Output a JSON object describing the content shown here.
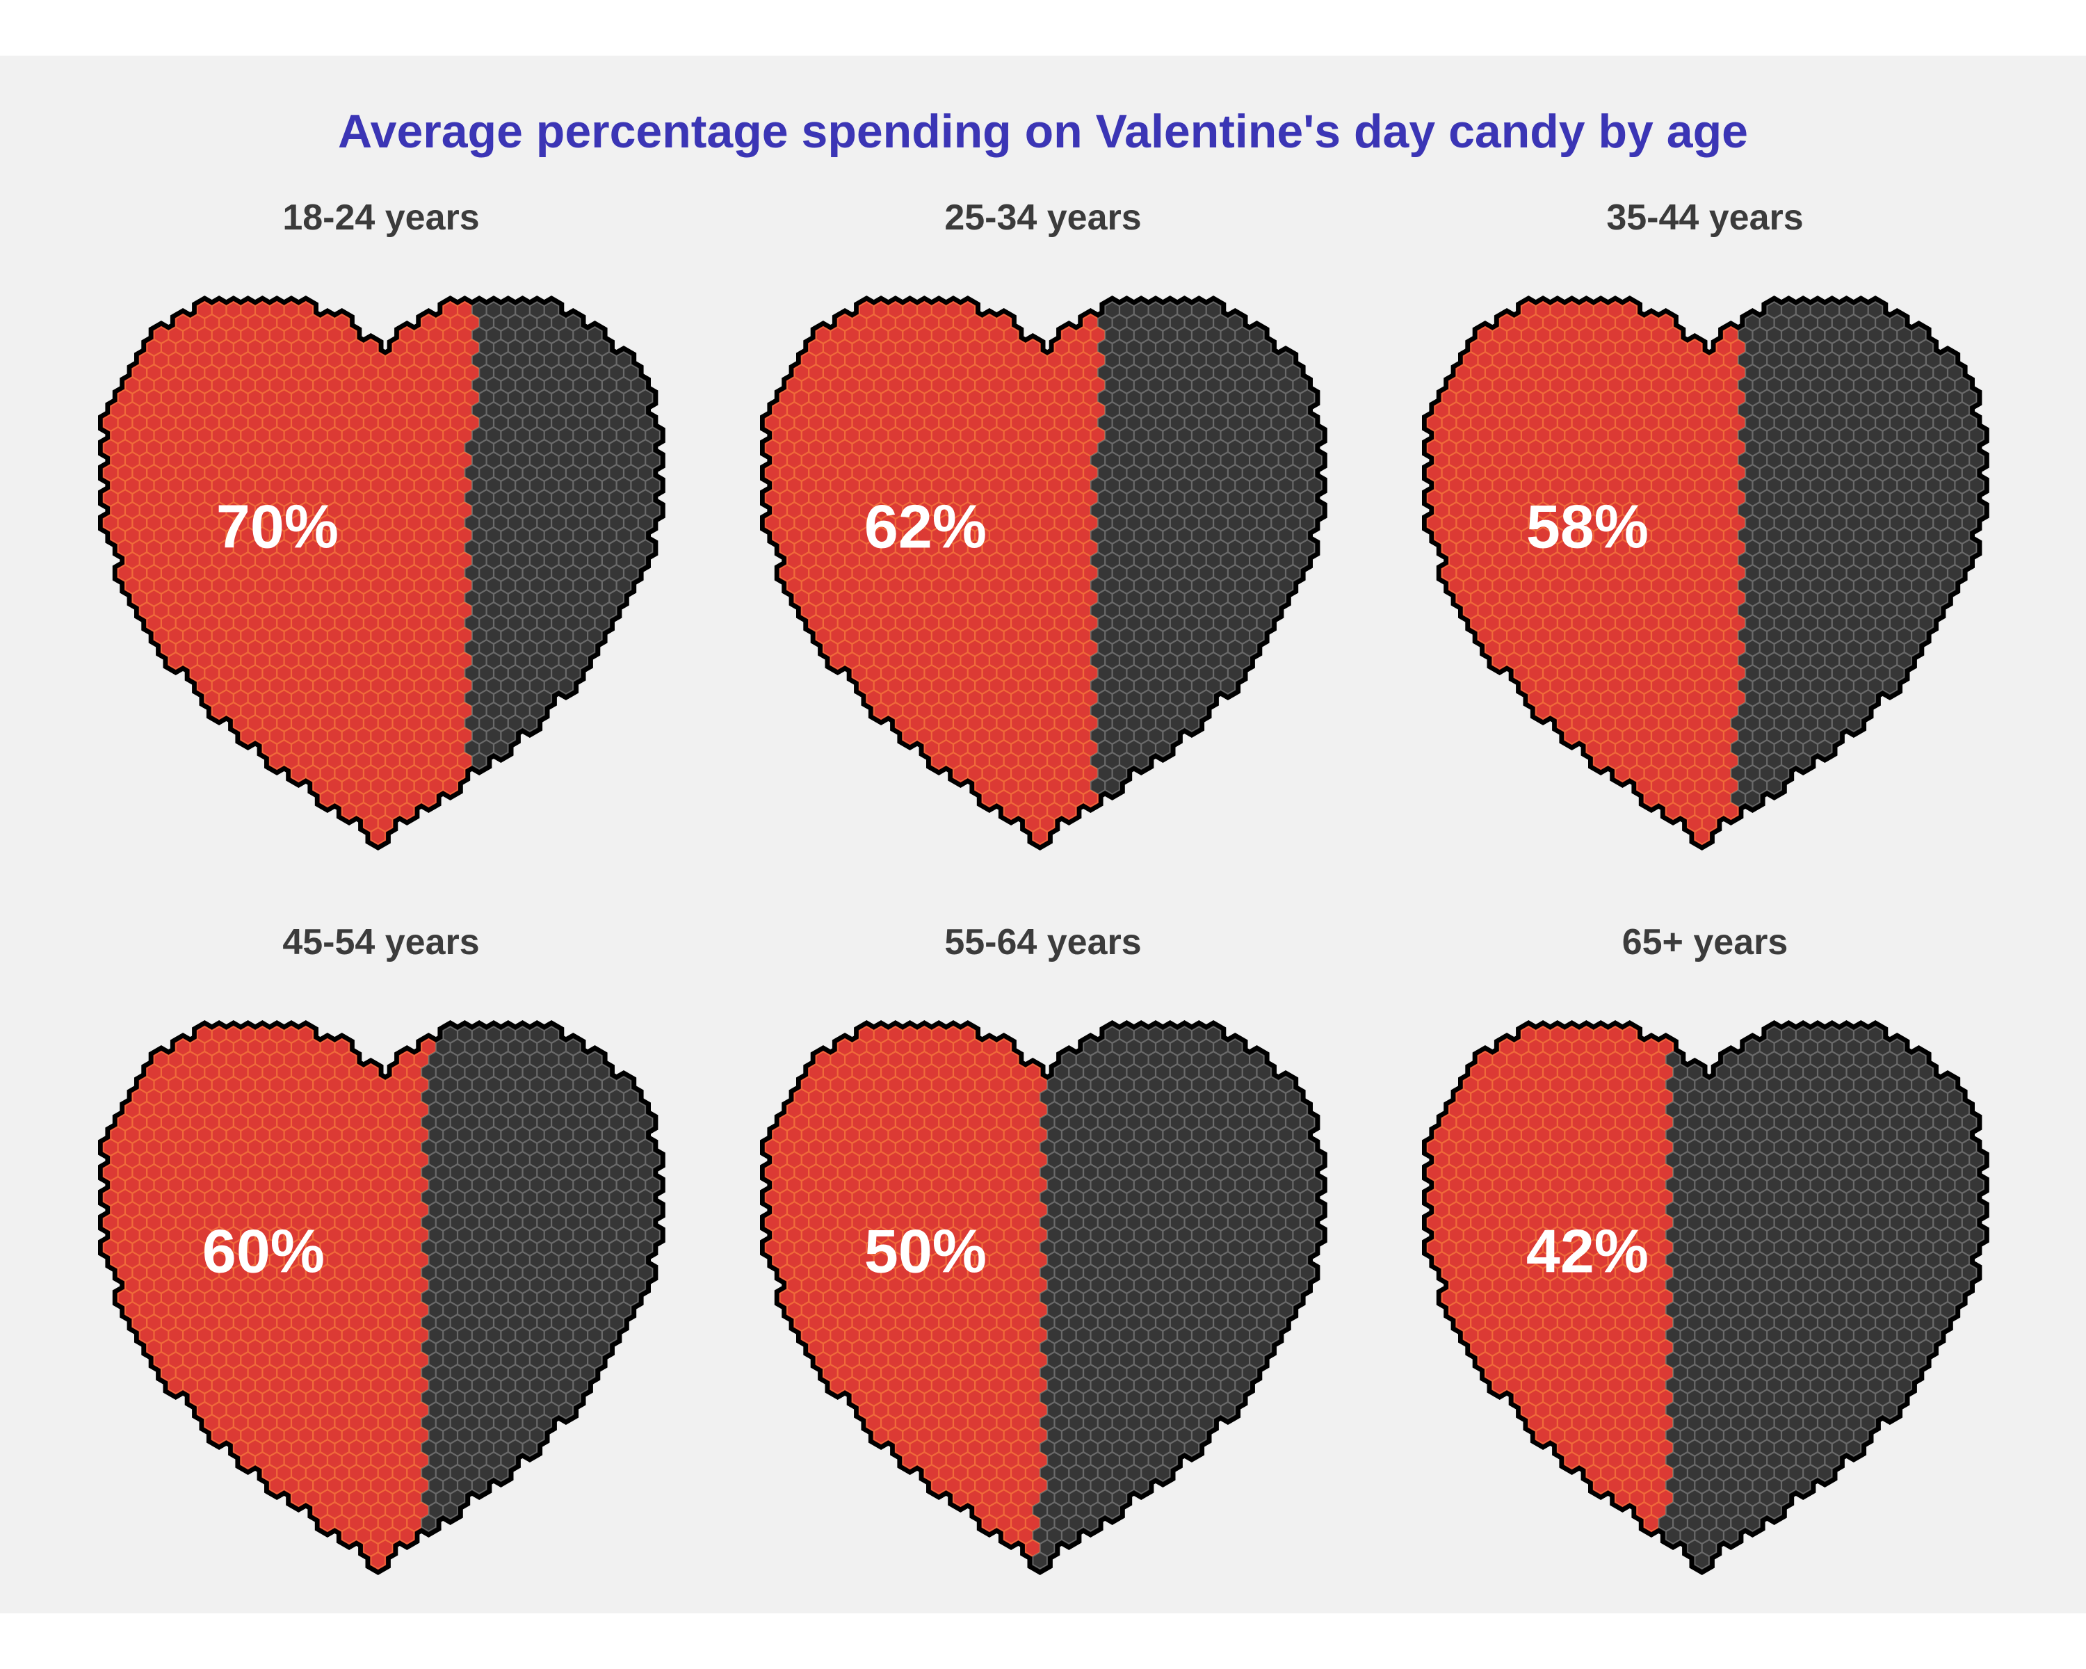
{
  "chart_data": {
    "type": "waffle-heart",
    "title": "Average percentage spending on Valentine's day candy by age",
    "facets": [
      {
        "label": "18-24 years",
        "value": 70,
        "value_label": "70%"
      },
      {
        "label": "25-34 years",
        "value": 62,
        "value_label": "62%"
      },
      {
        "label": "35-44 years",
        "value": 58,
        "value_label": "58%"
      },
      {
        "label": "45-54 years",
        "value": 60,
        "value_label": "60%"
      },
      {
        "label": "55-64 years",
        "value": 50,
        "value_label": "50%"
      },
      {
        "label": "65+ years",
        "value": 42,
        "value_label": "42%"
      }
    ],
    "colors": {
      "fill": "#dc3a34",
      "fill_cell_edge": "#f06a3a",
      "rest": "#363636",
      "rest_cell_edge": "#6a6a6a",
      "outline": "#000000",
      "title": "#3b35b5",
      "facet_label": "#3b3b3b",
      "value_label": "#ffffff",
      "background": "#f1f1f1"
    }
  }
}
